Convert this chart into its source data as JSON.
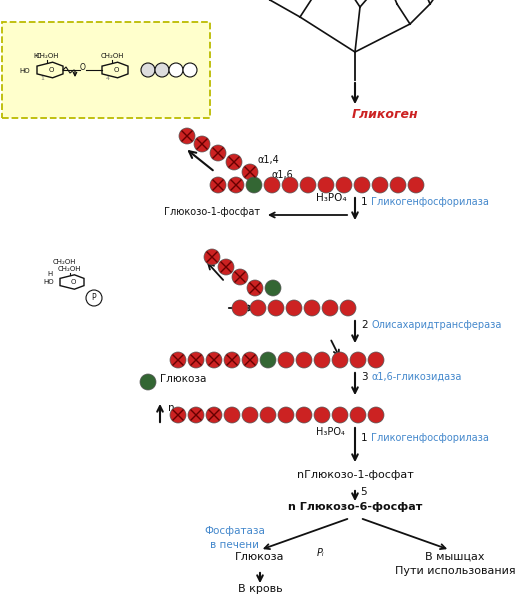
{
  "bg_color": "#ffffff",
  "red_color": "#cc2222",
  "red_dark": "#991111",
  "green_color": "#336633",
  "blue_text": "#4488cc",
  "red_text": "#cc2222",
  "black": "#111111",
  "yellow_bg": "#ffffdd",
  "title": "Гликоген",
  "enzyme1": "Гликогенфосфорилаза",
  "enzyme2": "Олисахаридтрансфераза",
  "enzyme3": "α1,6-гликозидаза",
  "label_alpha14": "α1,4",
  "label_alpha16": "α1,6",
  "label_h3po4": "H₃PO₄",
  "label_glc1p": "Глюкозо-1-фосфат",
  "label_glucose": "Глюкоза",
  "label_nglc1p": "nГлюкозо-1-фосфат",
  "label_nglc6p": "n Глюкозо-6-фосфат",
  "label_phosphatase": "Фосфатаза\nв печени",
  "label_glc": "Глюкоза",
  "label_blood": "В кровь",
  "label_muscle": "В мышцах",
  "label_usage": "Пути использования",
  "label_n": "n",
  "label_pi": "Pᵢ",
  "label_5": "5",
  "label_1": "1",
  "label_2": "2",
  "label_3": "3",
  "label_h3po4_2": "H₃PO₄"
}
